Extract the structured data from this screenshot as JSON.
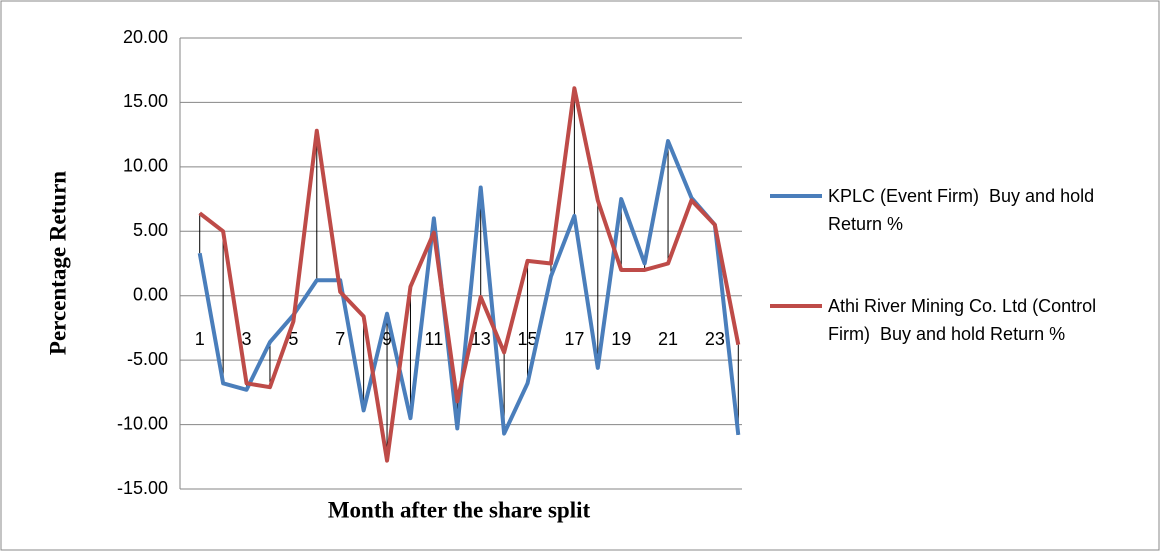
{
  "chart_data": {
    "type": "line",
    "x_label": "Month after the share split",
    "y_label": "Percentage Return",
    "categories": [
      "1",
      null,
      "3",
      null,
      "5",
      null,
      "7",
      null,
      "9",
      null,
      "11",
      null,
      "13",
      null,
      "15",
      null,
      "17",
      null,
      "19",
      null,
      "21",
      null,
      "23",
      null
    ],
    "series": [
      {
        "name": "KPLC (Event Firm)  Buy and hold Return %",
        "color": "#4a7ebb",
        "values": [
          3.3,
          -6.8,
          -7.3,
          -3.6,
          -1.5,
          1.2,
          1.2,
          -8.9,
          -1.4,
          -9.5,
          6.0,
          -10.3,
          8.4,
          -10.7,
          -6.8,
          1.5,
          6.2,
          -5.6,
          7.5,
          2.5,
          12.0,
          7.6,
          5.5,
          -10.8
        ]
      },
      {
        "name": "Athi River Mining Co. Ltd (Control Firm)  Buy and hold Return %",
        "color": "#be4b48",
        "values": [
          6.4,
          5.0,
          -6.8,
          -7.1,
          -2.0,
          12.8,
          0.3,
          -1.6,
          -12.8,
          0.7,
          4.9,
          -8.2,
          -0.1,
          -4.4,
          2.7,
          2.5,
          16.1,
          7.4,
          2.0,
          2.0,
          2.5,
          7.4,
          5.5,
          -3.8
        ]
      }
    ],
    "ylim": [
      -15,
      20
    ],
    "yticks": [
      {
        "value": -15,
        "label": "-15.00"
      },
      {
        "value": -10,
        "label": "-10.00"
      },
      {
        "value": -5,
        "label": "-5.00"
      },
      {
        "value": 0,
        "label": "0.00"
      },
      {
        "value": 5,
        "label": "5.00"
      },
      {
        "value": 10,
        "label": "10.00"
      },
      {
        "value": 15,
        "label": "15.00"
      },
      {
        "value": 20,
        "label": "20.00"
      }
    ],
    "grid": true,
    "drop_lines": true,
    "legend": "right"
  }
}
